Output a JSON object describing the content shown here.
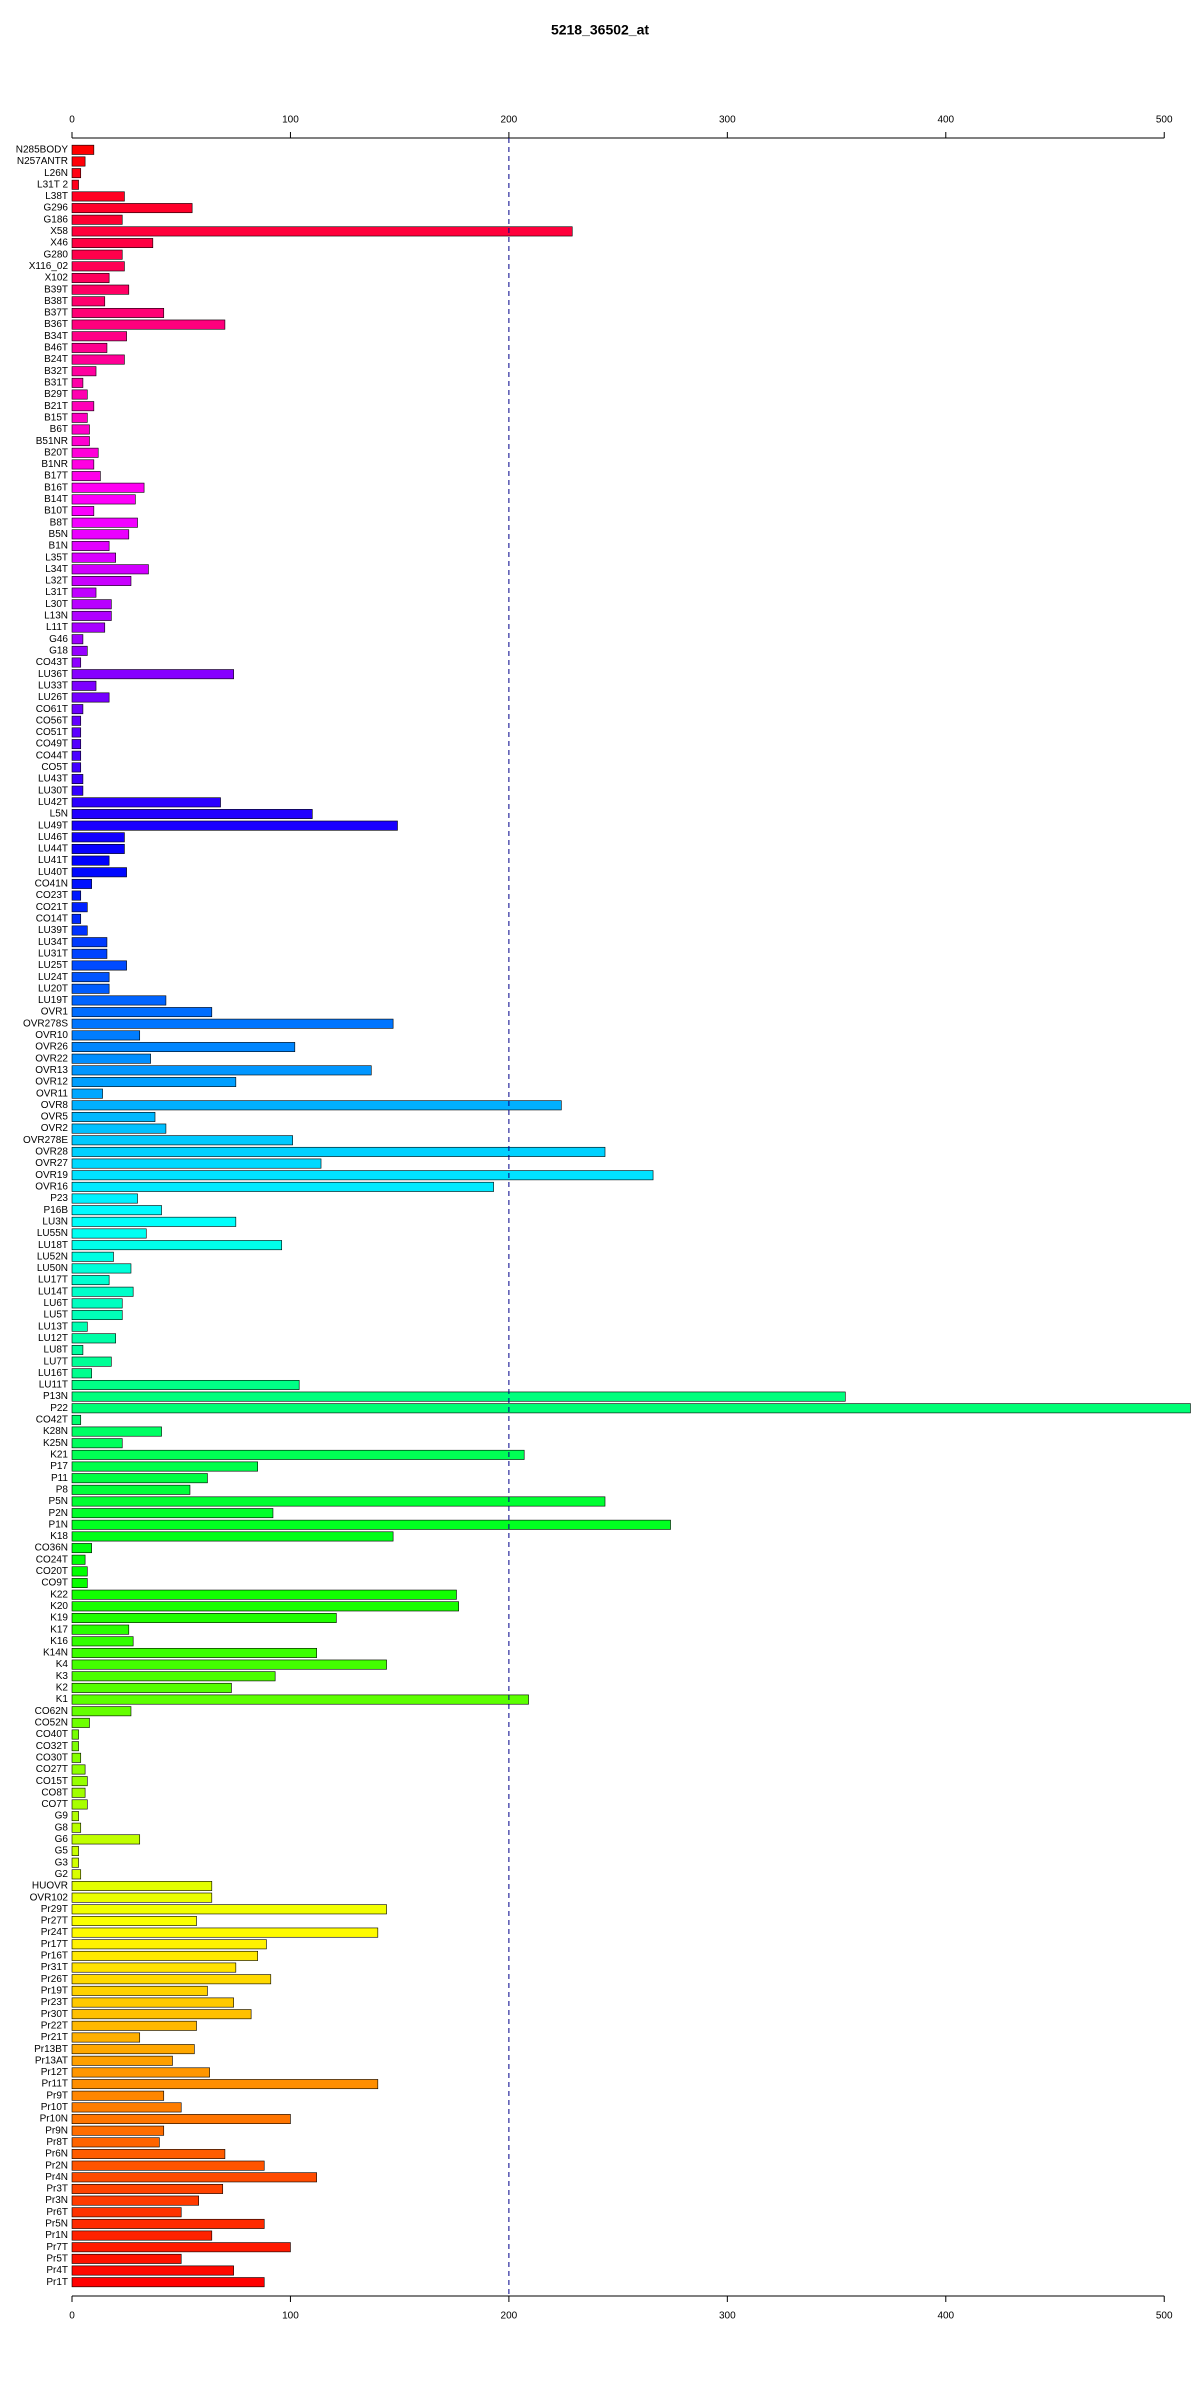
{
  "chart_data": {
    "type": "barh",
    "title": "5218_36502_at",
    "categories": [
      "N285BODY",
      "N257ANTR",
      "L26N",
      "L31T 2",
      "L38T",
      "G296",
      "G186",
      "X58",
      "X46",
      "G280",
      "X116_02",
      "X102",
      "B39T",
      "B38T",
      "B37T",
      "B36T",
      "B34T",
      "B46T",
      "B24T",
      "B32T",
      "B31T",
      "B29T",
      "B21T",
      "B15T",
      "B6T",
      "B51NR",
      "B20T",
      "B1NR",
      "B17T",
      "B16T",
      "B14T",
      "B10T",
      "B8T",
      "B5N",
      "B1N",
      "L35T",
      "L34T",
      "L32T",
      "L31T",
      "L30T",
      "L13N",
      "L11T",
      "G46",
      "G18",
      "CO43T",
      "LU36T",
      "LU33T",
      "LU26T",
      "CO61T",
      "CO56T",
      "CO51T",
      "CO49T",
      "CO44T",
      "CO5T",
      "LU43T",
      "LU30T",
      "LU42T",
      "L5N",
      "LU49T",
      "LU46T",
      "LU44T",
      "LU41T",
      "LU40T",
      "CO41N",
      "CO23T",
      "CO21T",
      "CO14T",
      "LU39T",
      "LU34T",
      "LU31T",
      "LU25T",
      "LU24T",
      "LU20T",
      "LU19T",
      "OVR1",
      "OVR278S",
      "OVR10",
      "OVR26",
      "OVR22",
      "OVR13",
      "OVR12",
      "OVR11",
      "OVR8",
      "OVR5",
      "OVR2",
      "OVR278E",
      "OVR28",
      "OVR27",
      "OVR19",
      "OVR16",
      "P23",
      "P16B",
      "LU3N",
      "LU55N",
      "LU18T",
      "LU52N",
      "LU50N",
      "LU17T",
      "LU14T",
      "LU6T",
      "LU5T",
      "LU13T",
      "LU12T",
      "LU8T",
      "LU7T",
      "LU16T",
      "LU11T",
      "P13N",
      "P22",
      "CO42T",
      "K28N",
      "K25N",
      "K21",
      "P17",
      "P11",
      "P8",
      "P5N",
      "P2N",
      "P1N",
      "K18",
      "CO36N",
      "CO24T",
      "CO20T",
      "CO9T",
      "K22",
      "K20",
      "K19",
      "K17",
      "K16",
      "K14N",
      "K4",
      "K3",
      "K2",
      "K1",
      "CO62N",
      "CO52N",
      "CO40T",
      "CO32T",
      "CO30T",
      "CO27T",
      "CO15T",
      "CO8T",
      "CO7T",
      "G9",
      "G8",
      "G6",
      "G5",
      "G3",
      "G2",
      "HUOVR",
      "OVR102",
      "Pr29T",
      "Pr27T",
      "Pr24T",
      "Pr17T",
      "Pr16T",
      "Pr31T",
      "Pr26T",
      "Pr19T",
      "Pr23T",
      "Pr30T",
      "Pr22T",
      "Pr21T",
      "Pr13BT",
      "Pr13AT",
      "Pr12T",
      "Pr11T",
      "Pr9T",
      "Pr10T",
      "Pr10N",
      "Pr9N",
      "Pr8T",
      "Pr6N",
      "Pr2N",
      "Pr4N",
      "Pr3T",
      "Pr3N",
      "Pr6T",
      "Pr5N",
      "Pr1N",
      "Pr7T",
      "Pr5T",
      "Pr4T",
      "Pr1T"
    ],
    "values": [
      10,
      6,
      4,
      3,
      24,
      55,
      23,
      229,
      37,
      23,
      24,
      17,
      26,
      15,
      42,
      70,
      25,
      16,
      24,
      11,
      5,
      7,
      10,
      7,
      8,
      8,
      12,
      10,
      13,
      33,
      29,
      10,
      30,
      26,
      17,
      20,
      35,
      27,
      11,
      18,
      18,
      15,
      5,
      7,
      4,
      74,
      11,
      17,
      5,
      4,
      4,
      4,
      4,
      4,
      5,
      5,
      68,
      110,
      149,
      24,
      24,
      17,
      25,
      9,
      4,
      7,
      4,
      7,
      16,
      16,
      25,
      17,
      17,
      43,
      64,
      147,
      31,
      102,
      36,
      137,
      75,
      14,
      224,
      38,
      43,
      101,
      244,
      114,
      266,
      193,
      30,
      41,
      75,
      34,
      96,
      19,
      27,
      17,
      28,
      23,
      23,
      7,
      20,
      5,
      18,
      9,
      104,
      354,
      512,
      4,
      41,
      23,
      207,
      85,
      62,
      54,
      244,
      92,
      274,
      147,
      9,
      6,
      7,
      7,
      176,
      177,
      121,
      26,
      28,
      112,
      144,
      93,
      73,
      209,
      27,
      8,
      3,
      3,
      4,
      6,
      7,
      6,
      7,
      3,
      4,
      31,
      3,
      3,
      4,
      64,
      64,
      144,
      57,
      140,
      89,
      85,
      75,
      91,
      62,
      74,
      82,
      57,
      31,
      56,
      46,
      63,
      140,
      42,
      50,
      100,
      42,
      40,
      70,
      88,
      112,
      69,
      58,
      50,
      88,
      64,
      100,
      50,
      74,
      88
    ],
    "palette": "rainbow",
    "xlim": [
      0,
      515
    ],
    "xticks": [
      0,
      100,
      200,
      300,
      400,
      500
    ],
    "reference_line": 200,
    "reference_line_color": "#00008b"
  }
}
